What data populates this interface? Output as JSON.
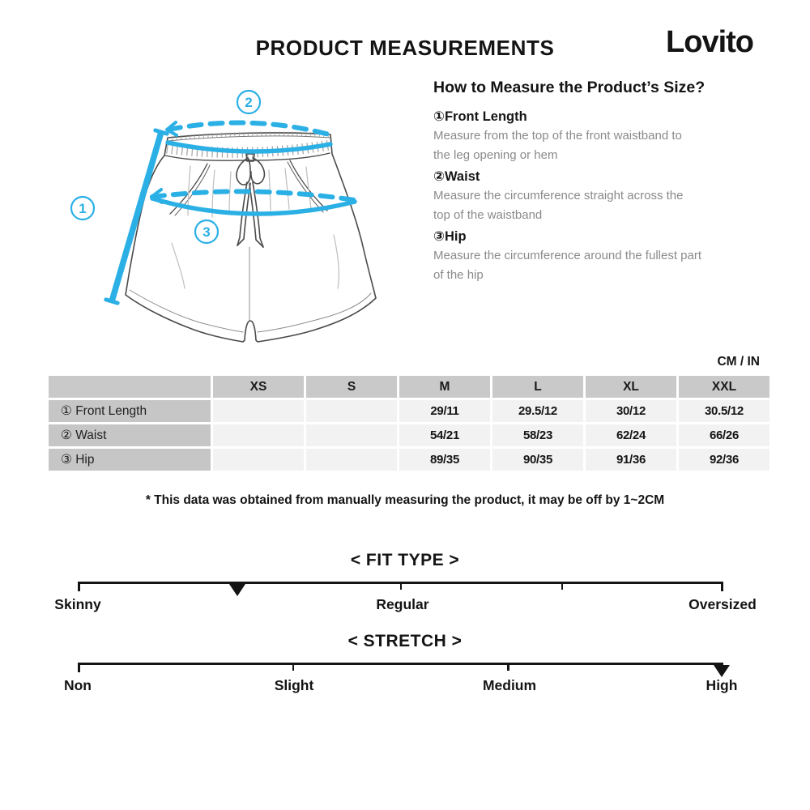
{
  "header": {
    "title": "PRODUCT MEASUREMENTS",
    "brand": "Lovito"
  },
  "diagram": {
    "callouts": [
      "1",
      "2",
      "3"
    ],
    "accent_color": "#2bb0e6"
  },
  "how_to": {
    "title": "How to Measure the Product’s Size?",
    "items": [
      {
        "label": "①Front Length",
        "desc": "Measure from the top of the front waistband to\nthe leg opening or hem"
      },
      {
        "label": "②Waist",
        "desc": "Measure the circumference straight across the\ntop of the waistband"
      },
      {
        "label": "③Hip",
        "desc": "Measure the circumference around the fullest part\nof the hip"
      }
    ]
  },
  "units_label": "CM / IN",
  "size_table": {
    "columns": [
      "",
      "XS",
      "S",
      "M",
      "L",
      "XL",
      "XXL"
    ],
    "rows": [
      {
        "label": "① Front Length",
        "values": [
          "",
          "",
          "29/11",
          "29.5/12",
          "30/12",
          "30.5/12"
        ]
      },
      {
        "label": "② Waist",
        "values": [
          "",
          "",
          "54/21",
          "58/23",
          "62/24",
          "66/26"
        ]
      },
      {
        "label": "③ Hip",
        "values": [
          "",
          "",
          "89/35",
          "90/35",
          "91/36",
          "92/36"
        ]
      }
    ]
  },
  "note": "* This data was obtained from manually measuring the product, it may be off by 1~2CM",
  "scales": [
    {
      "title": "< FIT TYPE >",
      "labels": [
        "Skinny",
        "Regular",
        "Oversized"
      ],
      "marker_pct": 24.7
    },
    {
      "title": "< STRETCH >",
      "labels": [
        "Non",
        "Slight",
        "Medium",
        "High"
      ],
      "marker_pct": 99.7
    }
  ]
}
